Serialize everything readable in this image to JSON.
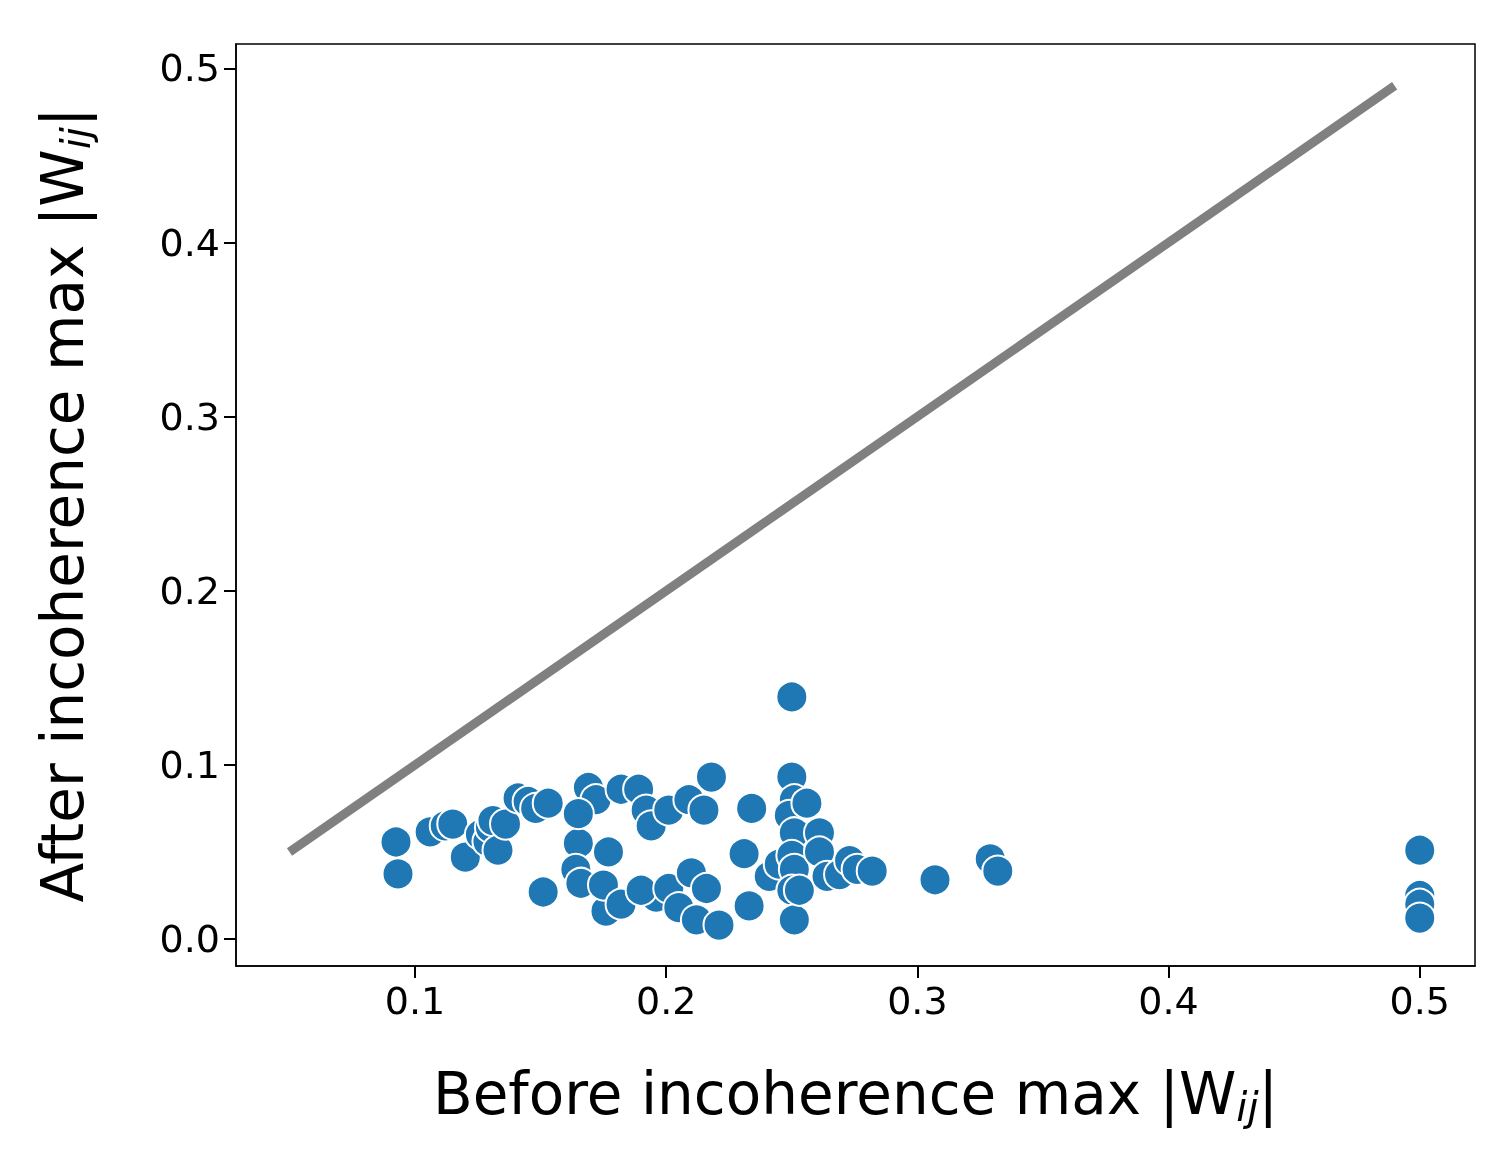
{
  "chart_data": {
    "type": "scatter",
    "xlabel": "Before incoherence max |W$_{ij}$|",
    "ylabel": "After incoherence max |W$_{ij}$|",
    "xlim": [
      0.0287,
      0.522
    ],
    "ylim": [
      -0.0155,
      0.514
    ],
    "xticks": [
      0.1,
      0.2,
      0.3,
      0.4,
      0.5
    ],
    "yticks": [
      {
        "value": 0,
        "label": "0.0"
      },
      {
        "value": 0.1,
        "label": "0.1"
      },
      {
        "value": 0.2,
        "label": "0.2"
      },
      {
        "value": 0.3,
        "label": "0.3"
      },
      {
        "value": 0.4,
        "label": "0.4"
      },
      {
        "value": 0.5,
        "label": "0.5"
      }
    ],
    "grid": false,
    "marker": "circle",
    "series": [
      {
        "type": "line",
        "color": "#808080",
        "marker": "none",
        "line_style": "solid",
        "x": [
          0.05,
          0.49
        ],
        "values": [
          0.05,
          0.49
        ]
      },
      {
        "color": "#1f77b4",
        "x": [
          0.0924,
          0.0932,
          0.106,
          0.112,
          0.115,
          0.12,
          0.126,
          0.129,
          0.13,
          0.131,
          0.133,
          0.136,
          0.141,
          0.145,
          0.148,
          0.153,
          0.151,
          0.165,
          0.169,
          0.172,
          0.165,
          0.164,
          0.166,
          0.177,
          0.176,
          0.175,
          0.182,
          0.182,
          0.189,
          0.192,
          0.194,
          0.196,
          0.19,
          0.201,
          0.201,
          0.205,
          0.209,
          0.21,
          0.212,
          0.216,
          0.218,
          0.215,
          0.221,
          0.231,
          0.233,
          0.234,
          0.241,
          0.245,
          0.25,
          0.25,
          0.251,
          0.249,
          0.251,
          0.25,
          0.251,
          0.25,
          0.251,
          0.253,
          0.256,
          0.261,
          0.261,
          0.264,
          0.269,
          0.273,
          0.276,
          0.282,
          0.307,
          0.329,
          0.332,
          0.5,
          0.5,
          0.5,
          0.5
        ],
        "values": [
          0.0557,
          0.0374,
          0.0615,
          0.065,
          0.066,
          0.047,
          0.06,
          0.056,
          0.064,
          0.068,
          0.051,
          0.066,
          0.081,
          0.079,
          0.075,
          0.078,
          0.027,
          0.055,
          0.087,
          0.08,
          0.072,
          0.04,
          0.032,
          0.05,
          0.016,
          0.031,
          0.086,
          0.02,
          0.086,
          0.074,
          0.065,
          0.024,
          0.028,
          0.074,
          0.029,
          0.018,
          0.08,
          0.038,
          0.011,
          0.029,
          0.093,
          0.074,
          0.008,
          0.049,
          0.019,
          0.075,
          0.036,
          0.043,
          0.139,
          0.093,
          0.08,
          0.071,
          0.061,
          0.048,
          0.04,
          0.028,
          0.011,
          0.028,
          0.078,
          0.061,
          0.05,
          0.036,
          0.037,
          0.045,
          0.04,
          0.039,
          0.034,
          0.046,
          0.039,
          0.051,
          0.025,
          0.02,
          0.012
        ]
      }
    ]
  }
}
